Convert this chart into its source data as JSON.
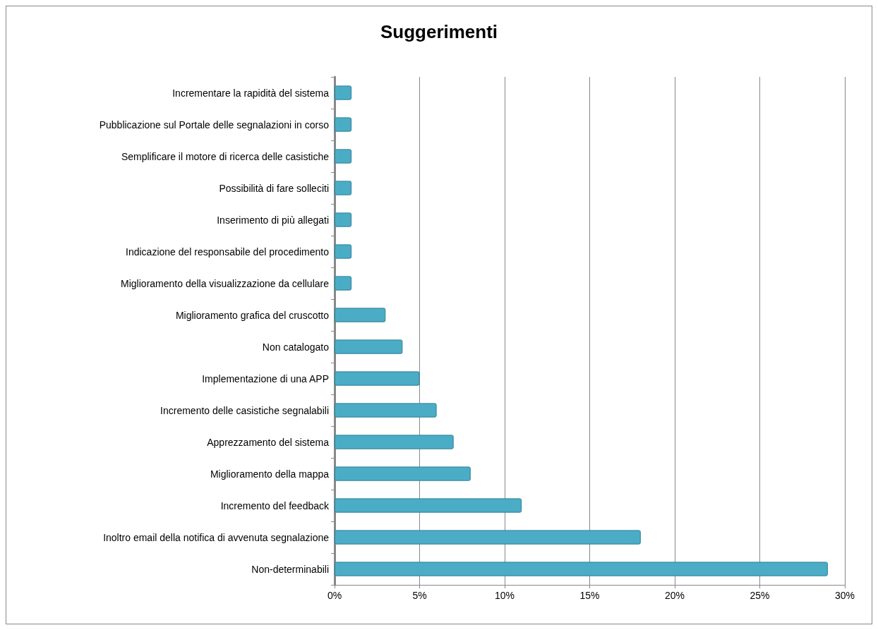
{
  "chart_data": {
    "type": "bar",
    "orientation": "horizontal",
    "title": "Suggerimenti",
    "categories": [
      "Incrementare la rapidità del sistema",
      "Pubblicazione sul Portale delle segnalazioni in corso",
      "Semplificare il motore di ricerca delle casistiche",
      "Possibilità di fare solleciti",
      "Inserimento di più allegati",
      "Indicazione del responsabile del procedimento",
      "Miglioramento della visualizzazione da cellulare",
      "Miglioramento grafica del cruscotto",
      "Non catalogato",
      "Implementazione di una APP",
      "Incremento delle casistiche segnalabili",
      "Apprezzamento del sistema",
      "Miglioramento della mappa",
      "Incremento del feedback",
      "Inoltro email della notifica di avvenuta segnalazione",
      "Non-determinabili"
    ],
    "values": [
      1,
      1,
      1,
      1,
      1,
      1,
      1,
      3,
      4,
      5,
      6,
      7,
      8,
      11,
      18,
      29
    ],
    "color": "#4bacc6",
    "xlim": [
      0,
      30
    ],
    "xticks": [
      {
        "value": 0,
        "label": "0%"
      },
      {
        "value": 5,
        "label": "5%"
      },
      {
        "value": 10,
        "label": "10%"
      },
      {
        "value": 15,
        "label": "15%"
      },
      {
        "value": 20,
        "label": "20%"
      },
      {
        "value": 25,
        "label": "25%"
      },
      {
        "value": 30,
        "label": "30%"
      }
    ],
    "grid": "x"
  }
}
